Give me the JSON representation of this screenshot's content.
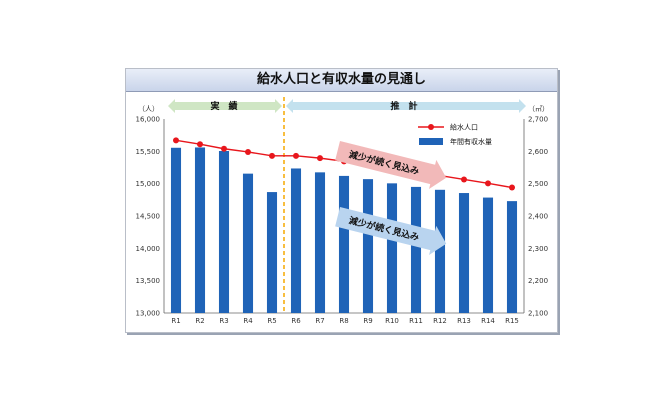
{
  "chart_data": {
    "type": "bar",
    "title": "給水人口と有収水量の見通し",
    "categories": [
      "R1",
      "R2",
      "R3",
      "R4",
      "R5",
      "R6",
      "R7",
      "R8",
      "R9",
      "R10",
      "R11",
      "R12",
      "R13",
      "R14",
      "R15"
    ],
    "series": [
      {
        "name": "給水人口",
        "type": "line",
        "axis": "left",
        "color": "#e8161c",
        "values": [
          15670,
          15610,
          15540,
          15490,
          15430,
          15430,
          15395,
          15345,
          15290,
          15240,
          15185,
          15125,
          15065,
          15005,
          14940
        ]
      },
      {
        "name": "年間有収水量",
        "type": "bar",
        "axis": "right",
        "color": "#1f63b7",
        "values": [
          2611,
          2612,
          2601,
          2531,
          2474,
          2547,
          2535,
          2524,
          2514,
          2501,
          2490,
          2481,
          2471,
          2457,
          2446
        ]
      }
    ],
    "y_left": {
      "unit": "（人）",
      "min": 13000,
      "max": 16000,
      "ticks": [
        "13,000",
        "13,500",
        "14,000",
        "14,500",
        "15,000",
        "15,500",
        "16,000"
      ]
    },
    "y_right": {
      "unit": "（㎥）",
      "min": 2100,
      "max": 2700,
      "ticks": [
        "2,100",
        "2,200",
        "2,300",
        "2,400",
        "2,500",
        "2,600",
        "2,700"
      ]
    },
    "periods": [
      {
        "label": "実　績",
        "color": "#cfe6c4"
      },
      {
        "label": "推　計",
        "color": "#c3e1ee"
      }
    ],
    "annotations": [
      {
        "text": "減少が続く見込み",
        "color": "#f2b9b9",
        "target": "給水人口"
      },
      {
        "text": "減少が続く見込み",
        "color": "#b9d4ef",
        "target": "年間有収水量"
      }
    ],
    "legend": {
      "placement": "top-right",
      "items": [
        "給水人口",
        "年間有収水量"
      ]
    },
    "divider_after": "R5",
    "grid": false
  }
}
